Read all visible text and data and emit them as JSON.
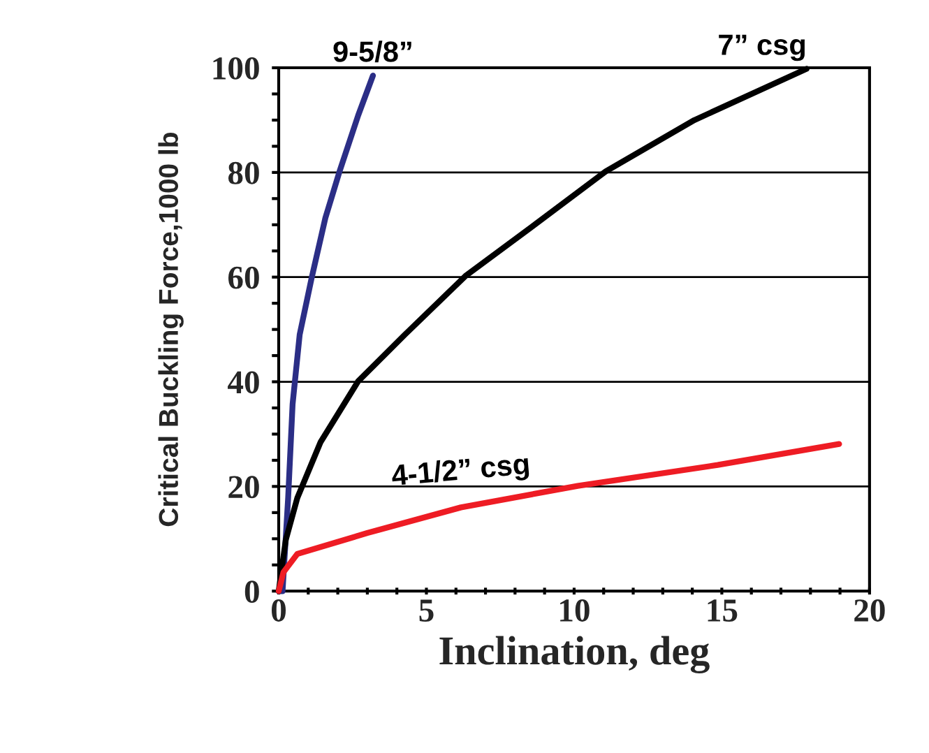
{
  "chart_data": {
    "type": "line",
    "xlabel": "Inclination, deg",
    "ylabel": "Critical Buckling Force,1000 lb",
    "xlim": [
      0,
      20
    ],
    "ylim": [
      0,
      100
    ],
    "xticks": [
      0,
      {
        "value": 1,
        "label": null
      },
      {
        "value": 2,
        "label": null
      },
      {
        "value": 3,
        "label": null
      },
      {
        "value": 4,
        "label": null
      },
      5,
      {
        "value": 6,
        "label": null
      },
      {
        "value": 7,
        "label": null
      },
      {
        "value": 8,
        "label": null
      },
      {
        "value": 9,
        "label": null
      },
      10,
      {
        "value": 11,
        "label": null
      },
      {
        "value": 12,
        "label": null
      },
      {
        "value": 13,
        "label": null
      },
      {
        "value": 14,
        "label": null
      },
      15,
      {
        "value": 16,
        "label": null
      },
      {
        "value": 17,
        "label": null
      },
      {
        "value": 18,
        "label": null
      },
      {
        "value": 19,
        "label": null
      },
      20
    ],
    "yticks": [
      0,
      {
        "value": 5,
        "label": null
      },
      {
        "value": 10,
        "label": null
      },
      {
        "value": 15,
        "label": null
      },
      20,
      {
        "value": 25,
        "label": null
      },
      {
        "value": 30,
        "label": null
      },
      {
        "value": 35,
        "label": null
      },
      40,
      {
        "value": 45,
        "label": null
      },
      {
        "value": 50,
        "label": null
      },
      {
        "value": 55,
        "label": null
      },
      60,
      {
        "value": 65,
        "label": null
      },
      {
        "value": 70,
        "label": null
      },
      {
        "value": 75,
        "label": null
      },
      80,
      {
        "value": 85,
        "label": null
      },
      {
        "value": 90,
        "label": null
      },
      {
        "value": 95,
        "label": null
      },
      100
    ],
    "grid": "y",
    "legend": false,
    "marker": "none",
    "line_style": "solid",
    "series": [
      {
        "name": "9-5/8”",
        "color": "#2b2e86",
        "x": [
          0,
          0.13,
          0.32,
          0.47,
          0.71,
          1.11,
          1.58,
          2.06,
          2.69,
          3.19
        ],
        "values": [
          0,
          0,
          17.8,
          35.7,
          49,
          59.7,
          71.3,
          80.2,
          90.9,
          98.5
        ]
      },
      {
        "name": "7” csg",
        "color": "#000000",
        "x": [
          0,
          0.24,
          0.63,
          1.42,
          2.69,
          4.27,
          6.32,
          8.54,
          11.07,
          14.07,
          17.87
        ],
        "values": [
          0,
          9.8,
          17.8,
          28.5,
          40.1,
          49,
          60.2,
          69.5,
          80.2,
          90,
          99.8
        ]
      },
      {
        "name": "4-1/2” csg",
        "color": "#ee1c24",
        "x": [
          0,
          0.16,
          0.63,
          3.0,
          6.17,
          10.12,
          14.86,
          18.97
        ],
        "values": [
          0,
          3.6,
          7.1,
          11.1,
          16,
          20.1,
          24.1,
          28.1
        ]
      }
    ]
  }
}
